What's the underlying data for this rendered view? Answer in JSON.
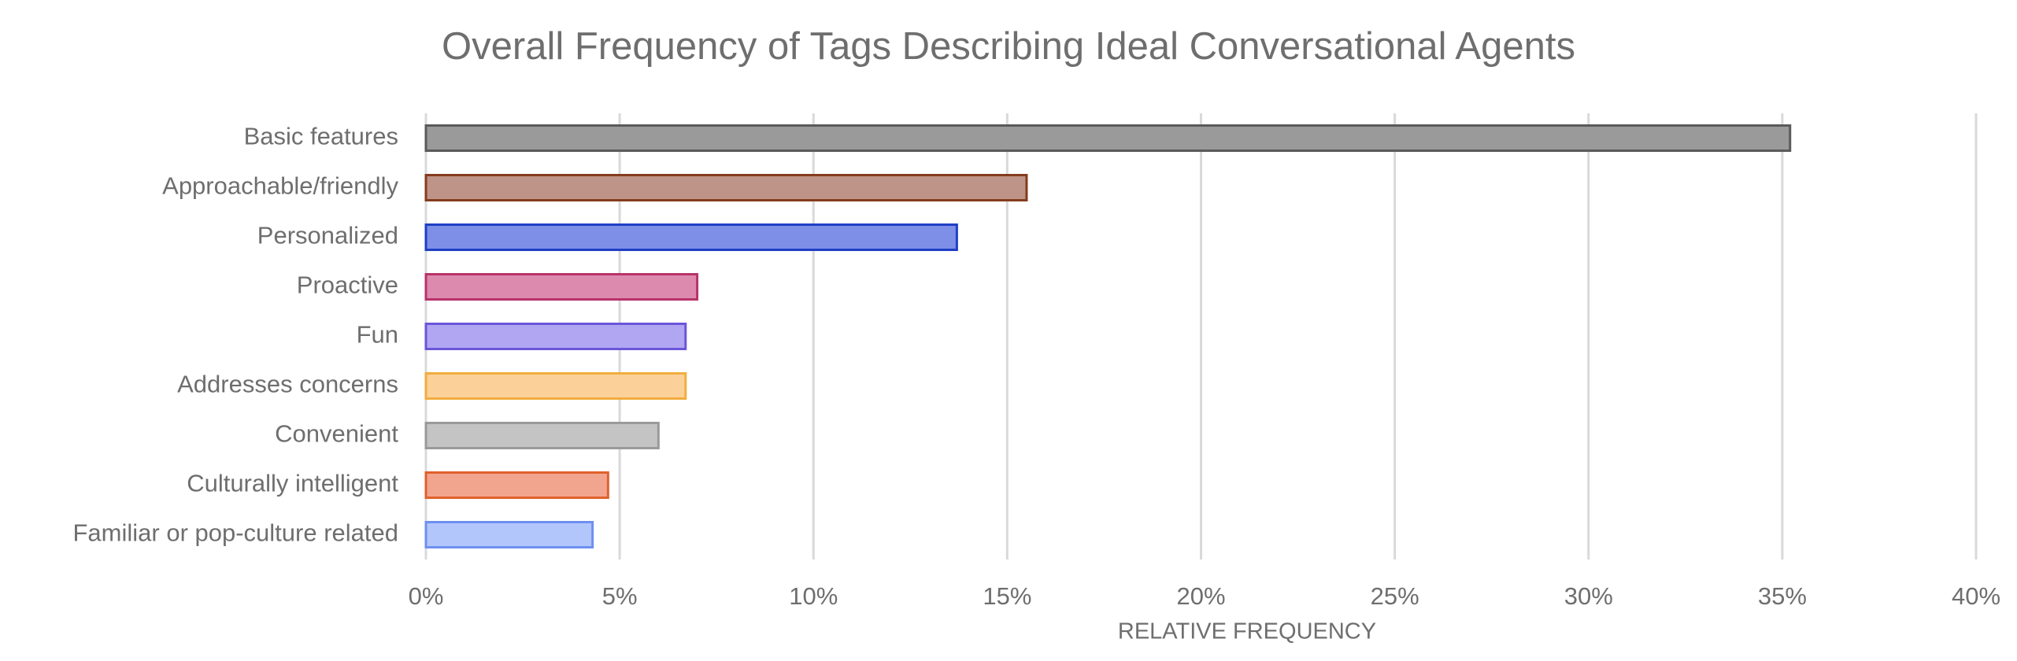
{
  "chart_data": {
    "type": "barh",
    "title": "Overall Frequency of Tags Describing Ideal Conversational Agents",
    "x_label": "RELATIVE FREQUENCY",
    "categories": [
      "Basic features",
      "Approachable/friendly",
      "Personalized",
      "Proactive",
      "Fun",
      "Addresses concerns",
      "Convenient",
      "Culturally intelligent",
      "Familiar or pop-culture related"
    ],
    "values": [
      35.2,
      15.5,
      13.7,
      7.0,
      6.7,
      6.7,
      6.0,
      4.7,
      4.3
    ],
    "colors": [
      "#9a9a9a",
      "#bf9488",
      "#7d8fe6",
      "#dc8aae",
      "#b0a6f2",
      "#fbd199",
      "#c4c4c4",
      "#f2a58e",
      "#b3c6fb"
    ],
    "edge_colors": [
      "#5a5a5a",
      "#843c1e",
      "#1f3fc4",
      "#b8336a",
      "#6b56d9",
      "#f0ad3e",
      "#9a9a9a",
      "#e0612e",
      "#6f8ff0"
    ],
    "xlim": [
      0,
      40
    ],
    "xticks": [
      {
        "value": 0,
        "label": "0%"
      },
      {
        "value": 5,
        "label": "5%"
      },
      {
        "value": 10,
        "label": "10%"
      },
      {
        "value": 15,
        "label": "15%"
      },
      {
        "value": 20,
        "label": "20%"
      },
      {
        "value": 25,
        "label": "25%"
      },
      {
        "value": 30,
        "label": "30%"
      },
      {
        "value": 35,
        "label": "35%"
      },
      {
        "value": 40,
        "label": "40%"
      }
    ],
    "grid": true
  }
}
